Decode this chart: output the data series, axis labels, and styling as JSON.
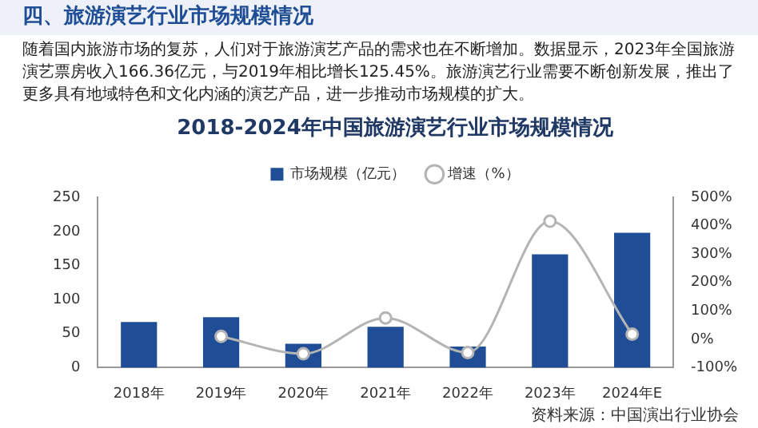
{
  "chart_data": {
    "type": "bar",
    "title": "2018-2024年中国旅游演艺行业市场规模情况",
    "annotations": [
      "四、旅游演艺行业市场规模情况",
      "随着国内旅游市场的复苏，人们对于旅游演艺产品的需求也在不断增加。数据显示，2023年全国旅游演艺票房收入166.36亿元，与2019年相比增长125.45%。旅游演艺行业需要不断创新发展，推出了更多具有地域特色和文化内涵的演艺产品，进一步推动市场规模的扩大。",
      "资料来源：中国演出行业协会"
    ],
    "categories": [
      "2018年",
      "2019年",
      "2020年",
      "2021年",
      "2022年",
      "2023年",
      "2024年E"
    ],
    "series": [
      {
        "name": "市场规模（亿元）",
        "color": "#1f4e96",
        "values": [
          67,
          74,
          35,
          60,
          31,
          166.36,
          198
        ]
      },
      {
        "name": "增速（%）",
        "type": "line",
        "axis": "y2",
        "color": "#b4b4b4",
        "values": [
          null,
          10,
          -51,
          75,
          -47,
          416,
          18
        ]
      }
    ],
    "ylim": [
      0,
      250
    ],
    "yticks": [
      0,
      50,
      100,
      150,
      200,
      250
    ],
    "y2lim": [
      -100,
      500
    ],
    "y2ticks": [
      {
        "value": -100,
        "label": "-100%"
      },
      {
        "value": 0,
        "label": "0%"
      },
      {
        "value": 100,
        "label": "100%"
      },
      {
        "value": 200,
        "label": "200%"
      },
      {
        "value": 300,
        "label": "300%"
      },
      {
        "value": 400,
        "label": "400%"
      },
      {
        "value": 500,
        "label": "500%"
      }
    ],
    "legend": "top",
    "marker": "circle",
    "grid": false
  }
}
